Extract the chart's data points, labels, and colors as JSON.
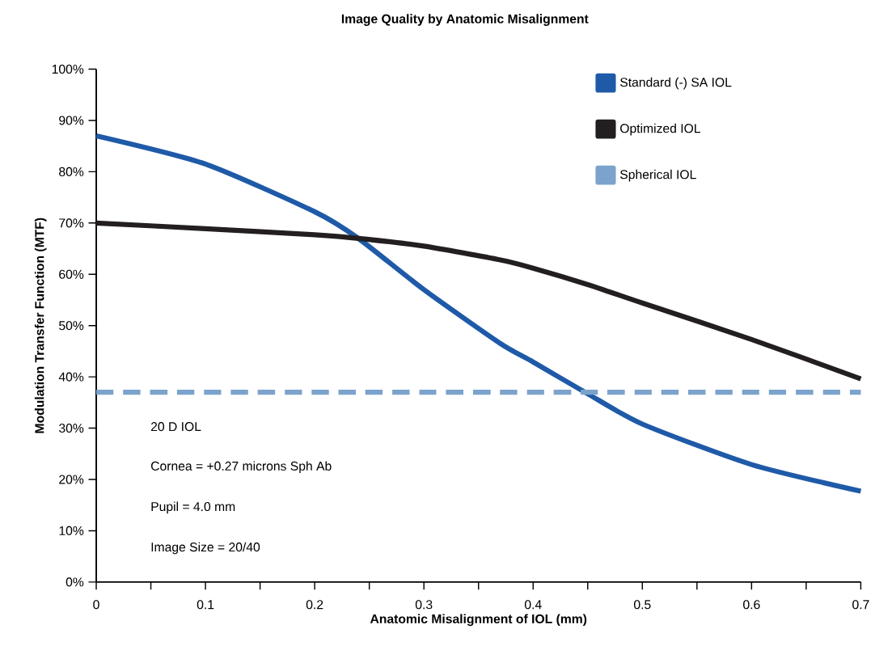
{
  "chart_data": {
    "type": "line",
    "title": "Image Quality by Anatomic Misalignment",
    "xlabel": "Anatomic Misalignment of IOL (mm)",
    "ylabel": "Modulation Transfer Function (MTF)",
    "x": [
      0,
      0.1,
      0.2,
      0.24,
      0.3,
      0.37,
      0.4,
      0.45,
      0.5,
      0.6,
      0.7
    ],
    "series": [
      {
        "name": "Standard (-) SA IOL",
        "color": "#1f5aa8",
        "values": [
          87,
          81.5,
          72.2,
          67,
          57,
          46.5,
          42.9,
          36.7,
          30.8,
          22.9,
          17.7
        ]
      },
      {
        "name": "Optimized IOL",
        "color": "#231f20",
        "values": [
          70,
          68.9,
          67.7,
          67,
          65.5,
          62.8,
          61.2,
          58,
          54.4,
          47.3,
          39.6
        ]
      },
      {
        "name": "Spherical IOL",
        "color": "#7ba3cc",
        "line_style": "dashed",
        "values": [
          37,
          37,
          37,
          37,
          37,
          37,
          37,
          37,
          37,
          37,
          37
        ]
      }
    ],
    "xlim": [
      0,
      0.7
    ],
    "ylim": [
      0,
      100
    ],
    "xticks": [
      0,
      {
        "value": 0.05,
        "label": null
      },
      0.1,
      {
        "value": 0.15,
        "label": null
      },
      0.2,
      {
        "value": 0.25,
        "label": null
      },
      0.3,
      {
        "value": 0.35,
        "label": null
      },
      0.4,
      {
        "value": 0.45,
        "label": null
      },
      0.5,
      {
        "value": 0.55,
        "label": null
      },
      0.6,
      {
        "value": 0.65,
        "label": null
      },
      0.7
    ],
    "yticks": [
      {
        "value": 0,
        "label": "0%"
      },
      {
        "value": 10,
        "label": "10%"
      },
      {
        "value": 20,
        "label": "20%"
      },
      {
        "value": 30,
        "label": "30%"
      },
      {
        "value": 40,
        "label": "40%"
      },
      {
        "value": 50,
        "label": "50%"
      },
      {
        "value": 60,
        "label": "60%"
      },
      {
        "value": 70,
        "label": "70%"
      },
      {
        "value": 80,
        "label": "80%"
      },
      {
        "value": 90,
        "label": "90%"
      },
      {
        "value": 100,
        "label": "100%"
      }
    ],
    "legend": "top right",
    "grid": false,
    "marker": "none",
    "line_style": "solid",
    "annotations": [
      "20 D IOL",
      "Cornea = +0.27 microns Sph Ab",
      "Pupil = 4.0 mm",
      "Image Size = 20/40"
    ]
  }
}
